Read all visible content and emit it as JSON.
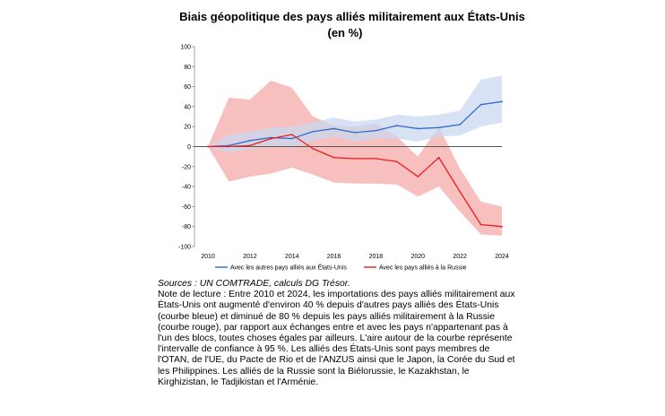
{
  "chart_data": {
    "type": "line",
    "title": "Biais géopolitique des pays alliés militairement aux États-Unis",
    "subtitle": "(en %)",
    "x": [
      2010,
      2011,
      2012,
      2013,
      2014,
      2015,
      2016,
      2017,
      2018,
      2019,
      2020,
      2021,
      2022,
      2023,
      2024
    ],
    "xticks": [
      2010,
      2012,
      2014,
      2016,
      2018,
      2020,
      2022,
      2024
    ],
    "yticks": [
      100,
      80,
      60,
      40,
      20,
      0,
      -20,
      -40,
      -60,
      -80,
      -100
    ],
    "xlim": [
      2010,
      2024
    ],
    "ylim": [
      -100,
      100
    ],
    "series": [
      {
        "name": "Avec les autres pays alliés aux États-Unis",
        "color": "#2f6fc4",
        "band_color": "#c9d8f0",
        "values": [
          0,
          1,
          6,
          9,
          8,
          15,
          18,
          14,
          16,
          21,
          18,
          19,
          22,
          42,
          45
        ],
        "lower": [
          0,
          -6,
          -2,
          0,
          -1,
          5,
          10,
          5,
          8,
          8,
          5,
          10,
          11,
          20,
          24
        ],
        "upper": [
          0,
          12,
          15,
          19,
          20,
          24,
          29,
          25,
          27,
          32,
          30,
          32,
          36,
          67,
          71
        ]
      },
      {
        "name": "Avec les pays alliés à la Russie",
        "color": "#ee1c1c",
        "band_color": "#f7b8b8",
        "values": [
          0,
          0,
          1,
          8,
          12,
          -2,
          -11,
          -12,
          -12,
          -15,
          -30,
          -11,
          -45,
          -78,
          -80
        ],
        "lower": [
          0,
          -35,
          -30,
          -27,
          -21,
          -28,
          -36,
          -37,
          -37,
          -38,
          -50,
          -40,
          -65,
          -88,
          -89
        ],
        "upper": [
          0,
          49,
          47,
          66,
          59,
          30,
          21,
          20,
          23,
          10,
          -10,
          20,
          -22,
          -55,
          -60
        ]
      }
    ]
  },
  "notes": {
    "sources": "Sources : UN COMTRADE, calculs DG Trésor.",
    "note": "Note de lecture : Entre 2010 et 2024, les importations des pays alliés militairement aux États-Unis ont augmenté d'environ 40 % depuis d'autres pays alliés des États-Unis (courbe bleue) et diminué de 80 % depuis les pays alliés militairement à la Russie (courbe rouge), par rapport aux échanges entre et avec les pays n'appartenant pas à l'un des blocs, toutes choses égales par ailleurs. L'aire autour de la courbe représente l'intervalle de confiance à 95 %. Les alliés des États-Unis sont pays membres de l'OTAN, de l'UE, du Pacte de Rio et de l'ANZUS ainsi que le Japon, la Corée du Sud et les Philippines. Les alliés de la Russie sont la Biélorussie, le Kazakhstan, le Kirghizistan, le Tadjikistan et l'Arménie."
  }
}
